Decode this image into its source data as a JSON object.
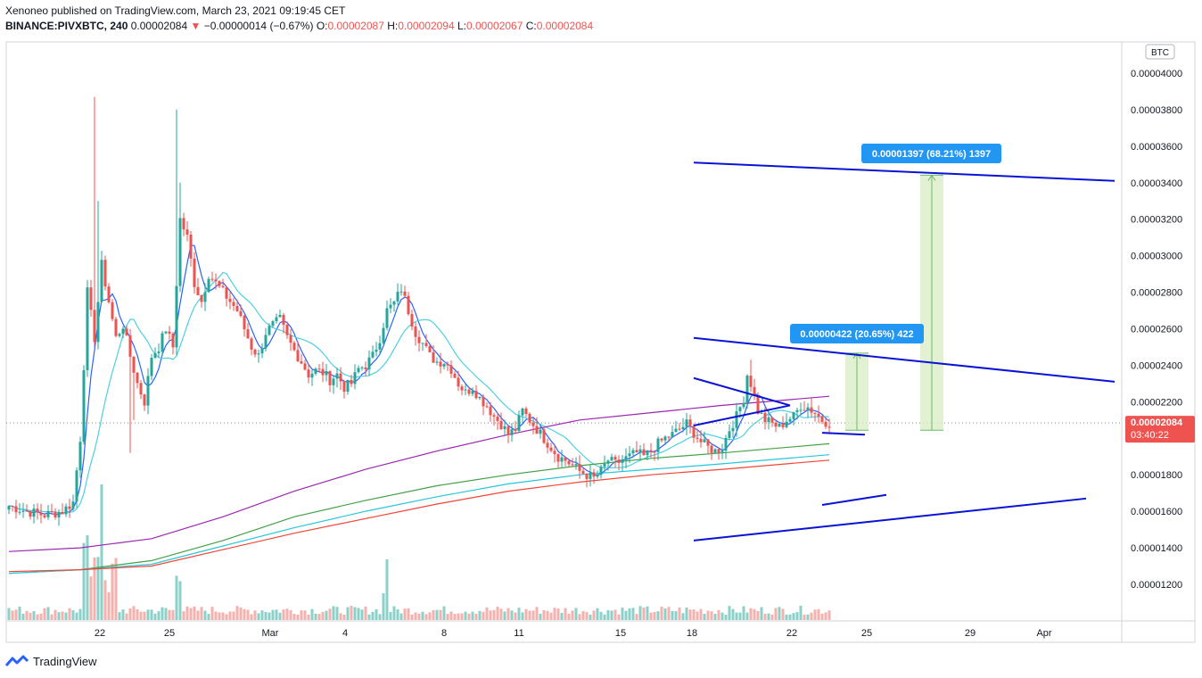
{
  "header": {
    "publisher_line": "Xenoneo published on TradingView.com, March 23, 2021 09:19:45 CET",
    "symbol": "BINANCE:PIVXBTC, 240",
    "last": "0.00002084",
    "change_arrow": "▼",
    "change": "−0.00000014 (−0.67%)",
    "o_label": "O:",
    "o_val": "0.00002087",
    "h_label": "H:",
    "h_val": "0.00002094",
    "l_label": "L:",
    "l_val": "0.00002067",
    "c_label": "C:",
    "c_val": "0.00002084"
  },
  "footer": {
    "brand": "TradingView"
  },
  "colors": {
    "up": "#26a69a",
    "down": "#ef5350",
    "trend": "#0a12d6",
    "ma_fast": "#2962ff",
    "ma_mid": "#4dd0e1",
    "ma_purple": "#9c27b0",
    "ma_green": "#43a047",
    "ma_teal": "#26c6da",
    "ma_red": "#f44336",
    "measure_fill": "#dcedc8",
    "measure_line": "#66bb6a",
    "label_bg": "#2196f3"
  },
  "chart_data": {
    "type": "candlestick",
    "currency_label": "BTC",
    "ylim": [
      1e-05,
      4.3e-05
    ],
    "y_ticks": [
      "0.00004000",
      "0.00003800",
      "0.00003600",
      "0.00003400",
      "0.00003200",
      "0.00003000",
      "0.00002800",
      "0.00002600",
      "0.00002400",
      "0.00002200",
      "0.00002000",
      "0.00001800",
      "0.00001600",
      "0.00001400",
      "0.00001200"
    ],
    "x_ticks": [
      "22",
      "25",
      "Mar",
      "4",
      "8",
      "11",
      "15",
      "18",
      "22",
      "25",
      "29",
      "Apr"
    ],
    "last_price_label": "0.00002084",
    "countdown_label": "03:40:22",
    "measure_labels": [
      {
        "text": "0.00000422 (20.65%) 422",
        "from": 2.044e-05,
        "to": 2.466e-05
      },
      {
        "text": "0.00001397 (68.21%) 1397",
        "from": 2.044e-05,
        "to": 3.441e-05
      }
    ],
    "anchors": [
      [
        0,
        1.63
      ],
      [
        5,
        1.6
      ],
      [
        10,
        1.58
      ],
      [
        15,
        1.6
      ],
      [
        18,
        1.65
      ],
      [
        20,
        2.0
      ],
      [
        22,
        2.8
      ],
      [
        24,
        2.55
      ],
      [
        26,
        2.95
      ],
      [
        28,
        2.75
      ],
      [
        30,
        2.55
      ],
      [
        32,
        2.62
      ],
      [
        34,
        2.45
      ],
      [
        36,
        2.3
      ],
      [
        38,
        2.2
      ],
      [
        40,
        2.45
      ],
      [
        42,
        2.5
      ],
      [
        44,
        2.6
      ],
      [
        46,
        2.5
      ],
      [
        48,
        3.2
      ],
      [
        50,
        3.1
      ],
      [
        52,
        2.85
      ],
      [
        54,
        2.75
      ],
      [
        56,
        2.9
      ],
      [
        58,
        2.85
      ],
      [
        60,
        2.8
      ],
      [
        62,
        2.75
      ],
      [
        64,
        2.7
      ],
      [
        66,
        2.6
      ],
      [
        68,
        2.5
      ],
      [
        70,
        2.45
      ],
      [
        72,
        2.58
      ],
      [
        74,
        2.62
      ],
      [
        76,
        2.65
      ],
      [
        78,
        2.55
      ],
      [
        80,
        2.48
      ],
      [
        82,
        2.42
      ],
      [
        84,
        2.35
      ],
      [
        86,
        2.37
      ],
      [
        88,
        2.36
      ],
      [
        90,
        2.32
      ],
      [
        92,
        2.35
      ],
      [
        94,
        2.28
      ],
      [
        96,
        2.3
      ],
      [
        98,
        2.38
      ],
      [
        100,
        2.4
      ],
      [
        102,
        2.45
      ],
      [
        104,
        2.55
      ],
      [
        106,
        2.7
      ],
      [
        108,
        2.74
      ],
      [
        110,
        2.82
      ],
      [
        112,
        2.7
      ],
      [
        114,
        2.58
      ],
      [
        116,
        2.52
      ],
      [
        118,
        2.45
      ],
      [
        120,
        2.42
      ],
      [
        122,
        2.42
      ],
      [
        124,
        2.38
      ],
      [
        126,
        2.3
      ],
      [
        128,
        2.25
      ],
      [
        130,
        2.28
      ],
      [
        132,
        2.22
      ],
      [
        134,
        2.18
      ],
      [
        136,
        2.12
      ],
      [
        138,
        2.08
      ],
      [
        140,
        2.02
      ],
      [
        142,
        2.05
      ],
      [
        144,
        2.15
      ],
      [
        146,
        2.1
      ],
      [
        148,
        2.05
      ],
      [
        150,
        2.0
      ],
      [
        152,
        1.95
      ],
      [
        154,
        1.9
      ],
      [
        156,
        1.88
      ],
      [
        158,
        1.85
      ],
      [
        160,
        1.82
      ],
      [
        162,
        1.8
      ],
      [
        164,
        1.78
      ],
      [
        166,
        1.82
      ],
      [
        168,
        1.88
      ],
      [
        170,
        1.86
      ],
      [
        172,
        1.88
      ],
      [
        174,
        1.9
      ],
      [
        176,
        1.92
      ],
      [
        178,
        1.9
      ],
      [
        180,
        1.93
      ],
      [
        182,
        1.97
      ],
      [
        184,
        2.0
      ],
      [
        186,
        2.02
      ],
      [
        188,
        2.05
      ],
      [
        190,
        2.08
      ],
      [
        192,
        2.03
      ],
      [
        194,
        1.98
      ],
      [
        196,
        1.95
      ],
      [
        198,
        1.93
      ],
      [
        200,
        1.95
      ],
      [
        202,
        2.05
      ],
      [
        204,
        2.12
      ],
      [
        206,
        2.22
      ],
      [
        207,
        2.35
      ],
      [
        208,
        2.3
      ],
      [
        210,
        2.15
      ],
      [
        212,
        2.1
      ],
      [
        214,
        2.08
      ],
      [
        216,
        2.06
      ],
      [
        218,
        2.1
      ],
      [
        220,
        2.12
      ],
      [
        222,
        2.18
      ],
      [
        224,
        2.17
      ],
      [
        226,
        2.14
      ],
      [
        228,
        2.1
      ],
      [
        230,
        2.084
      ]
    ],
    "num_candles": 231,
    "moving_averages": [
      {
        "name": "MA fast",
        "color_key": "ma_fast"
      },
      {
        "name": "MA mid",
        "color_key": "ma_mid"
      },
      {
        "name": "MA 200",
        "color_key": "ma_purple",
        "points": [
          [
            0,
            1.38
          ],
          [
            20,
            1.4
          ],
          [
            40,
            1.45
          ],
          [
            60,
            1.57
          ],
          [
            80,
            1.71
          ],
          [
            100,
            1.83
          ],
          [
            120,
            1.93
          ],
          [
            140,
            2.02
          ],
          [
            160,
            2.1
          ],
          [
            180,
            2.14
          ],
          [
            200,
            2.18
          ],
          [
            230,
            2.23
          ]
        ]
      },
      {
        "name": "MA long green",
        "color_key": "ma_green",
        "points": [
          [
            0,
            1.26
          ],
          [
            20,
            1.28
          ],
          [
            40,
            1.33
          ],
          [
            60,
            1.44
          ],
          [
            80,
            1.57
          ],
          [
            100,
            1.66
          ],
          [
            120,
            1.74
          ],
          [
            140,
            1.8
          ],
          [
            160,
            1.85
          ],
          [
            180,
            1.89
          ],
          [
            200,
            1.92
          ],
          [
            230,
            1.97
          ]
        ]
      },
      {
        "name": "MA long teal",
        "color_key": "ma_teal",
        "points": [
          [
            0,
            1.26
          ],
          [
            20,
            1.28
          ],
          [
            40,
            1.31
          ],
          [
            60,
            1.41
          ],
          [
            80,
            1.51
          ],
          [
            100,
            1.6
          ],
          [
            120,
            1.68
          ],
          [
            140,
            1.75
          ],
          [
            160,
            1.8
          ],
          [
            180,
            1.83
          ],
          [
            200,
            1.86
          ],
          [
            230,
            1.91
          ]
        ]
      },
      {
        "name": "MA long red",
        "color_key": "ma_red",
        "points": [
          [
            0,
            1.27
          ],
          [
            20,
            1.28
          ],
          [
            40,
            1.3
          ],
          [
            60,
            1.39
          ],
          [
            80,
            1.48
          ],
          [
            100,
            1.56
          ],
          [
            120,
            1.64
          ],
          [
            140,
            1.71
          ],
          [
            160,
            1.76
          ],
          [
            180,
            1.8
          ],
          [
            200,
            1.83
          ],
          [
            230,
            1.88
          ]
        ]
      }
    ],
    "trend_lines": [
      {
        "x1": 192,
        "y1": 3.51,
        "x2": 310,
        "y2": 3.41
      },
      {
        "x1": 192,
        "y1": 2.55,
        "x2": 310,
        "y2": 2.31
      },
      {
        "x1": 192,
        "y1": 1.44,
        "x2": 302,
        "y2": 1.67
      },
      {
        "x1": 228,
        "y1": 1.635,
        "x2": 246,
        "y2": 1.69
      },
      {
        "x1": 228,
        "y1": 2.03,
        "x2": 240,
        "y2": 2.02
      },
      {
        "x1": 192,
        "y1": 2.33,
        "x2": 219,
        "y2": 2.18
      },
      {
        "x1": 192,
        "y1": 2.07,
        "x2": 219,
        "y2": 2.18
      }
    ]
  }
}
